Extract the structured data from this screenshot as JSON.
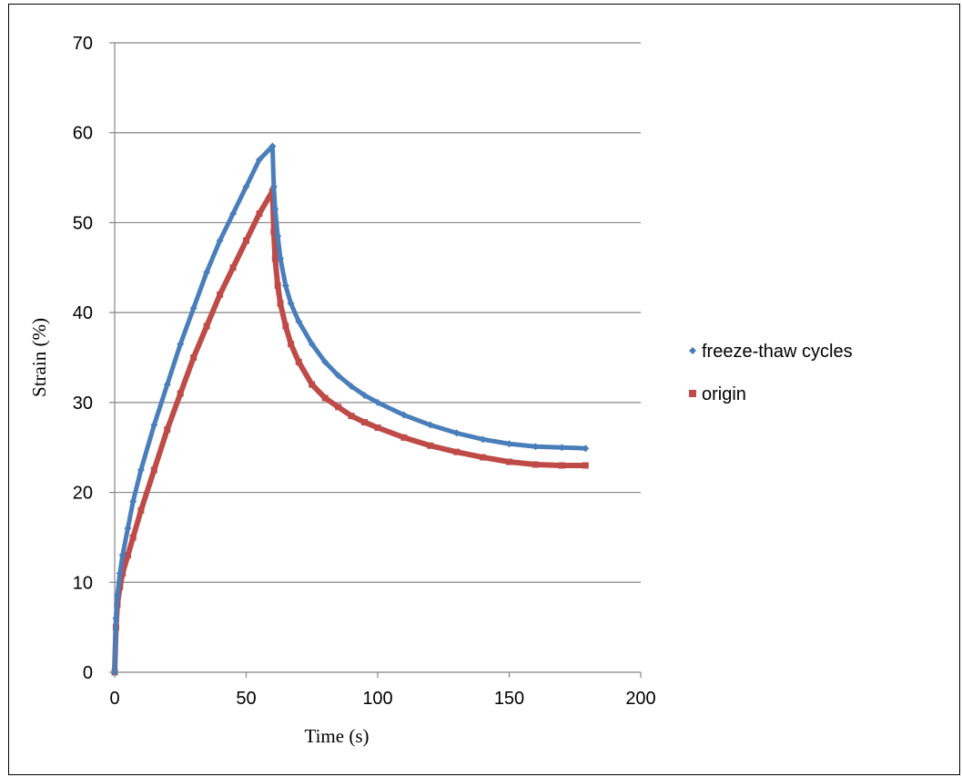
{
  "chart_data": {
    "type": "scatter",
    "title": "",
    "xlabel": "Time (s)",
    "ylabel": "Strain (%)",
    "xlim": [
      0,
      200
    ],
    "ylim": [
      0,
      70
    ],
    "x_ticks": [
      "0",
      "50",
      "100",
      "150",
      "200"
    ],
    "y_ticks": [
      "0",
      "10",
      "20",
      "30",
      "40",
      "50",
      "60",
      "70"
    ],
    "grid": "horizontal",
    "legend_position": "right",
    "series": [
      {
        "name": "freeze-thaw cycles",
        "marker": "diamond",
        "color": "#4a7ebb",
        "x": [
          0,
          0.5,
          1,
          2,
          3,
          5,
          7,
          10,
          15,
          20,
          25,
          30,
          35,
          40,
          45,
          50,
          55,
          60,
          60.5,
          61,
          62,
          63,
          65,
          67,
          70,
          75,
          80,
          85,
          90,
          95,
          100,
          110,
          120,
          130,
          140,
          150,
          160,
          170,
          179
        ],
        "y": [
          0,
          6,
          8.5,
          11,
          13,
          16,
          19,
          22.5,
          27.5,
          32,
          36.5,
          40.5,
          44.5,
          48,
          51,
          54,
          57,
          58.5,
          54,
          51.5,
          48.5,
          46,
          43,
          41,
          39,
          36.5,
          34.5,
          33,
          31.8,
          30.8,
          30,
          28.6,
          27.5,
          26.6,
          25.9,
          25.4,
          25.1,
          25,
          24.9
        ]
      },
      {
        "name": "origin",
        "marker": "square",
        "color": "#be4b48",
        "x": [
          0,
          0.5,
          1,
          2,
          3,
          5,
          7,
          10,
          15,
          20,
          25,
          30,
          35,
          40,
          45,
          50,
          55,
          60,
          60.5,
          61,
          62,
          63,
          65,
          67,
          70,
          75,
          80,
          85,
          90,
          95,
          100,
          110,
          120,
          130,
          140,
          150,
          160,
          170,
          179
        ],
        "y": [
          0,
          5,
          7.5,
          9.5,
          11,
          13,
          15,
          18,
          22.5,
          27,
          31,
          35,
          38.5,
          42,
          45,
          48,
          51,
          53.5,
          49,
          46,
          43,
          41,
          38.5,
          36.5,
          34.5,
          32,
          30.5,
          29.5,
          28.5,
          27.8,
          27.2,
          26.1,
          25.2,
          24.5,
          23.9,
          23.4,
          23.1,
          23,
          23
        ]
      }
    ]
  }
}
